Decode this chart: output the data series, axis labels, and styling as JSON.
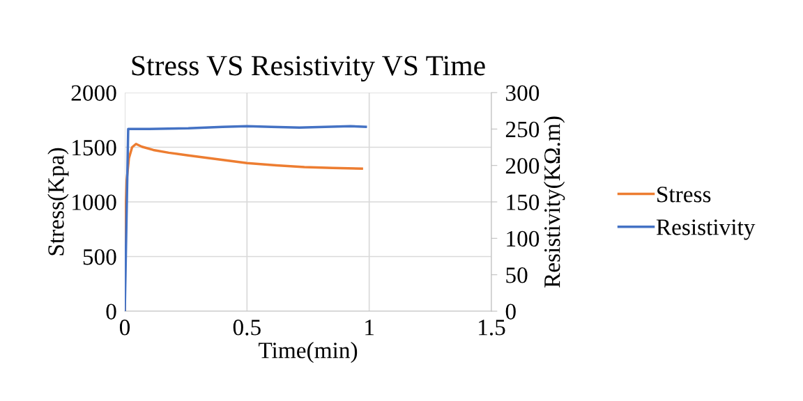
{
  "chart_data": {
    "type": "line",
    "title": "Stress VS Resistivity VS Time",
    "xlabel": "Time(min)",
    "ylabel": "Stress(Kpa)",
    "y2label": "Resistivity(KΩ.m)",
    "series": [
      {
        "name": "Stress",
        "color": "#ed7d31",
        "x": [
          0,
          0.003,
          0.008,
          0.017,
          0.03,
          0.046,
          0.07,
          0.117,
          0.18,
          0.26,
          0.38,
          0.5,
          0.62,
          0.735,
          0.85,
          0.97
        ],
        "values": [
          0,
          870,
          1200,
          1400,
          1500,
          1530,
          1505,
          1475,
          1450,
          1425,
          1390,
          1355,
          1335,
          1318,
          1310,
          1305
        ]
      },
      {
        "name": "Resistivity",
        "color": "#4472c4",
        "axis": "y2",
        "x": [
          0,
          0.014,
          0.1,
          0.26,
          0.4,
          0.5,
          0.6,
          0.715,
          0.82,
          0.923,
          0.986
        ],
        "values": [
          0,
          250,
          250,
          251,
          253,
          254,
          253,
          252,
          253,
          254,
          253
        ]
      }
    ],
    "xlim": [
      0,
      1.5
    ],
    "xticks": [
      0,
      0.5,
      1,
      1.5
    ],
    "ylim": [
      0,
      2000
    ],
    "yticks": [
      0,
      500,
      1000,
      1500,
      2000
    ],
    "y2lim": [
      0,
      300
    ],
    "y2ticks": [
      0,
      50,
      100,
      150,
      200,
      250,
      300
    ],
    "grid": true,
    "legend": "right",
    "marker": "none",
    "line_style": "solid"
  }
}
